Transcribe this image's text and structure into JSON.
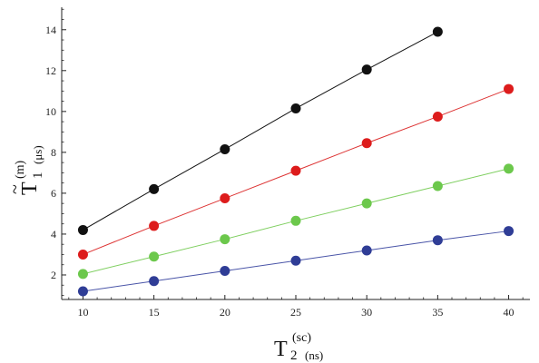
{
  "chart_data": {
    "type": "line",
    "title": "",
    "x": [
      10,
      15,
      20,
      25,
      30,
      35,
      40
    ],
    "xlim": [
      8.5,
      41.5
    ],
    "ylim": [
      0.8,
      15.1
    ],
    "xticks": [
      "10",
      "15",
      "20",
      "25",
      "30",
      "35",
      "40"
    ],
    "yticks": [
      "2",
      "4",
      "6",
      "8",
      "10",
      "12",
      "14"
    ],
    "grid": false,
    "legend": "none",
    "xlabel": {
      "symbol": "T",
      "subscript": "2",
      "superscript": "(sc)",
      "unit": "(ns)"
    },
    "ylabel": {
      "symbol": "T",
      "accent": "~",
      "subscript": "1",
      "superscript": "(m)",
      "unit": "(μs)"
    },
    "series": [
      {
        "values": [
          4.2,
          6.2,
          8.15,
          10.15,
          12.05,
          13.9,
          null
        ],
        "color": "#111111",
        "line_color": "#111111"
      },
      {
        "values": [
          3.0,
          4.4,
          5.75,
          7.1,
          8.45,
          9.75,
          11.1
        ],
        "color": "#dd1c1c",
        "line_color": "#dd3333"
      },
      {
        "values": [
          2.05,
          2.9,
          3.75,
          4.65,
          5.5,
          6.35,
          7.2
        ],
        "color": "#6cc84c",
        "line_color": "#7fcf60"
      },
      {
        "values": [
          1.2,
          1.7,
          2.2,
          2.7,
          3.2,
          3.7,
          4.15
        ],
        "color": "#2f3d96",
        "line_color": "#4a55a8"
      }
    ]
  }
}
